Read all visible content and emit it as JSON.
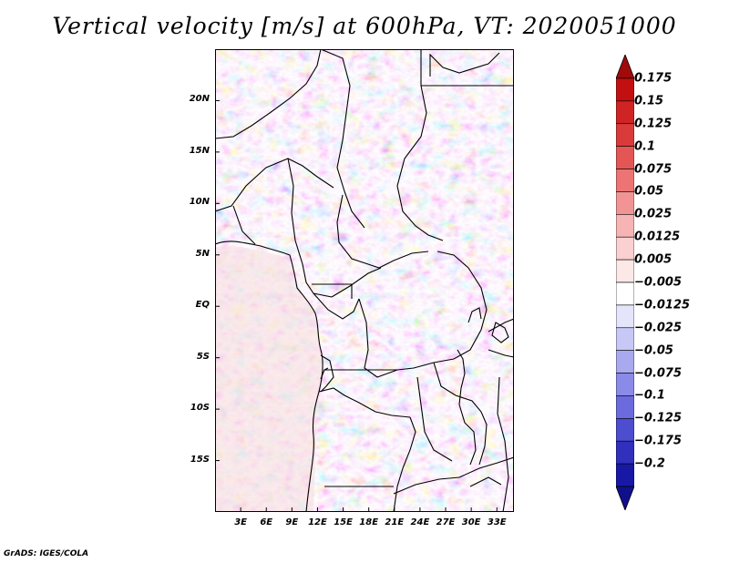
{
  "title": "Vertical velocity [m/s] at 600hPa, VT: 2020051000",
  "footer": "GrADS: IGES/COLA",
  "map": {
    "projection": "lat-lon",
    "lon_range": [
      0,
      35
    ],
    "lat_range": [
      -20,
      25
    ],
    "lat_ticks": [
      {
        "value": 20,
        "label": "20N"
      },
      {
        "value": 15,
        "label": "15N"
      },
      {
        "value": 10,
        "label": "10N"
      },
      {
        "value": 5,
        "label": "5N"
      },
      {
        "value": 0,
        "label": "EQ"
      },
      {
        "value": -5,
        "label": "5S"
      },
      {
        "value": -10,
        "label": "10S"
      },
      {
        "value": -15,
        "label": "15S"
      }
    ],
    "lon_ticks": [
      {
        "value": 3,
        "label": "3E"
      },
      {
        "value": 6,
        "label": "6E"
      },
      {
        "value": 9,
        "label": "9E"
      },
      {
        "value": 12,
        "label": "12E"
      },
      {
        "value": 15,
        "label": "15E"
      },
      {
        "value": 18,
        "label": "18E"
      },
      {
        "value": 21,
        "label": "21E"
      },
      {
        "value": 24,
        "label": "24E"
      },
      {
        "value": 27,
        "label": "27E"
      },
      {
        "value": 30,
        "label": "30E"
      },
      {
        "value": 33,
        "label": "33E"
      }
    ],
    "field": "vertical velocity",
    "units": "m/s",
    "level": "600hPa",
    "valid_time": "2020051000"
  },
  "colorbar": {
    "orientation": "vertical",
    "placement": "right",
    "levels": [
      {
        "label": "0.175",
        "color": "#c21010"
      },
      {
        "label": "0.15",
        "color": "#d02323"
      },
      {
        "label": "0.125",
        "color": "#db3a3a"
      },
      {
        "label": "0.1",
        "color": "#e45656"
      },
      {
        "label": "0.075",
        "color": "#ec7474"
      },
      {
        "label": "0.05",
        "color": "#f29494"
      },
      {
        "label": "0.025",
        "color": "#f7b4b4"
      },
      {
        "label": "0.0125",
        "color": "#fbd0d0"
      },
      {
        "label": "0.005",
        "color": "#fde8e8"
      },
      {
        "label": "-0.005",
        "color": "#ffffff"
      },
      {
        "label": "-0.0125",
        "color": "#e4e4fb"
      },
      {
        "label": "-0.025",
        "color": "#c8c8f6"
      },
      {
        "label": "-0.05",
        "color": "#a9a9f0"
      },
      {
        "label": "-0.075",
        "color": "#8a8ae8"
      },
      {
        "label": "-0.1",
        "color": "#6b6bdd"
      },
      {
        "label": "-0.125",
        "color": "#4d4dcf"
      },
      {
        "label": "-0.175",
        "color": "#3030bd"
      },
      {
        "label": "-0.2",
        "color": "#1818a6"
      }
    ],
    "top_arrow_color": "#a00a0a",
    "bottom_arrow_color": "#10108c"
  }
}
